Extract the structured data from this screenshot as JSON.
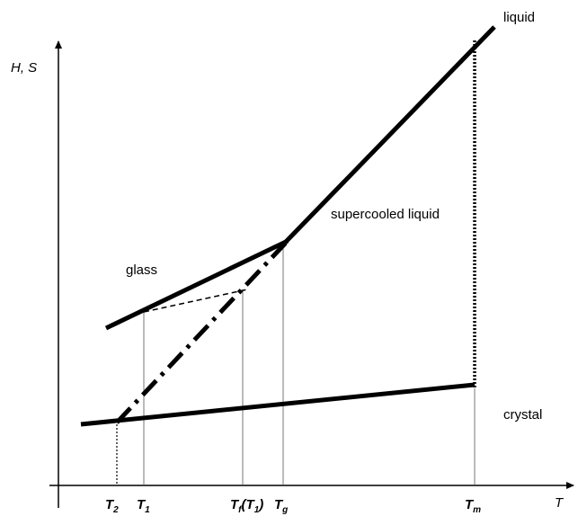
{
  "axes": {
    "y_label": "H, S",
    "x_label": "T"
  },
  "curves": {
    "liquid": "liquid",
    "supercooled": "supercooled liquid",
    "glass": "glass",
    "crystal": "crystal"
  },
  "x_ticks": [
    {
      "parts": [
        "T",
        "2"
      ]
    },
    {
      "parts": [
        "T",
        "1"
      ]
    },
    {
      "parts": [
        "T",
        "f",
        "(T",
        "1",
        ")"
      ]
    },
    {
      "parts": [
        "T",
        "g"
      ]
    },
    {
      "parts": [
        "T",
        "m"
      ]
    }
  ]
}
